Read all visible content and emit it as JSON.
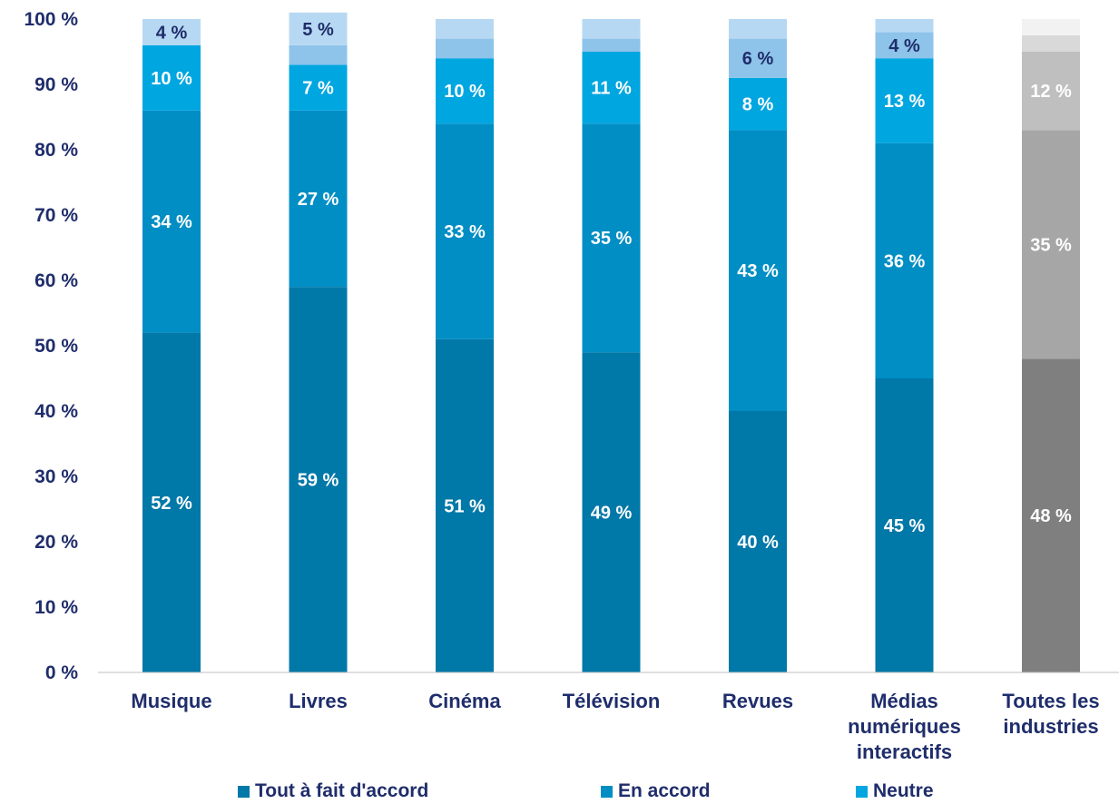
{
  "chart_data": {
    "type": "bar",
    "stacked": true,
    "categories": [
      [
        "Musique"
      ],
      [
        "Livres"
      ],
      [
        "Cinéma"
      ],
      [
        "Télévision"
      ],
      [
        "Revues"
      ],
      [
        "Médias",
        "numériques",
        "interactifs"
      ],
      [
        "Toutes les",
        "industries"
      ]
    ],
    "ylim": [
      0,
      100
    ],
    "yticks": [
      "0 %",
      "10 %",
      "20 %",
      "30 %",
      "40 %",
      "50 %",
      "60 %",
      "70 %",
      "80 %",
      "90 %",
      "100 %"
    ],
    "grid": false,
    "legend_position": "bottom",
    "series": [
      {
        "name": "Tout à fait d'accord",
        "values": [
          52,
          59,
          51,
          49,
          40,
          45,
          48
        ],
        "labels": [
          "52 %",
          "59 %",
          "51 %",
          "49 %",
          "40 %",
          "45 %",
          "48 %"
        ]
      },
      {
        "name": "En accord",
        "values": [
          34,
          27,
          33,
          35,
          43,
          36,
          35
        ],
        "labels": [
          "34 %",
          "27 %",
          "33 %",
          "35 %",
          "43 %",
          "36 %",
          "35 %"
        ]
      },
      {
        "name": "Neutre",
        "values": [
          10,
          7,
          10,
          11,
          8,
          13,
          12
        ],
        "labels": [
          "10 %",
          "7 %",
          "10 %",
          "11 %",
          "8 %",
          "13 %",
          "12 %"
        ]
      },
      {
        "values": [
          0,
          3,
          3,
          2,
          6,
          4,
          2.5
        ],
        "labels": [
          "",
          "",
          "",
          "",
          "6 %",
          "4 %",
          ""
        ]
      },
      {
        "values": [
          4,
          5,
          3,
          3,
          3,
          2,
          2.5
        ],
        "labels": [
          "4 %",
          "5 %",
          "",
          "",
          "",
          "",
          ""
        ]
      }
    ],
    "colors": {
      "blue": [
        "#0078a8",
        "#008ec4",
        "#00a6e0",
        "#8ec3ea",
        "#b7d8f2"
      ],
      "gray": [
        "#7f7f7f",
        "#a6a6a6",
        "#bfbfbf",
        "#d9d9d9",
        "#f2f2f2"
      ],
      "axis_text": "#1f2d6b",
      "label_light": "#ffffff",
      "label_dark": "#1f2d6b"
    }
  },
  "legend": {
    "items": [
      "Tout à fait d'accord",
      "En accord",
      "Neutre"
    ]
  }
}
